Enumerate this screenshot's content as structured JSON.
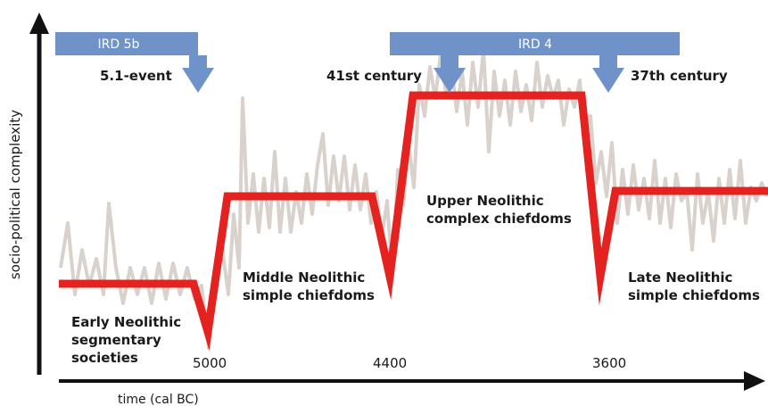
{
  "y_axis_label": "socio-political complexity",
  "x_axis_label": "time (cal BC)",
  "time_ticks": [
    "5000",
    "4400",
    "3600"
  ],
  "rapid_climate_change": [
    {
      "label": "IRD 5b"
    },
    {
      "label": "IRD 4"
    }
  ],
  "events": [
    "5.1-event",
    "41st century",
    "37th century"
  ],
  "phases": [
    {
      "line1": "Early Neolithic",
      "line2": "segmentary",
      "line3": "societies"
    },
    {
      "line1": "Middle Neolithic",
      "line2": "simple chiefdoms"
    },
    {
      "line1": "Upper Neolithic",
      "line2": "complex chiefdoms"
    },
    {
      "line1": "Late Neolithic",
      "line2": "simple chiefdoms"
    }
  ],
  "colors": {
    "complexity_line": "#e42320",
    "climate_proxy": "#d9d2cc",
    "ird_bar": "#6f93c9",
    "axes": "#111111"
  }
}
